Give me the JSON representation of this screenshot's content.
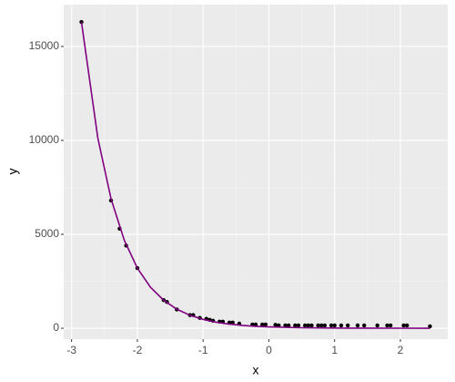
{
  "chart_data": {
    "type": "scatter",
    "x_label": "x",
    "y_label": "y",
    "xlim": [
      -3.12,
      2.72
    ],
    "xticks": [
      -3,
      -2,
      -1,
      0,
      1,
      2
    ],
    "ylim": [
      -580,
      17230
    ],
    "yticks": [
      0,
      5000,
      10000,
      15000
    ],
    "grid": true,
    "series": [
      {
        "type": "scatter",
        "color": "#000000",
        "x": [
          -2.85,
          -2.4,
          -2.27,
          -2.17,
          -2.0,
          -1.6,
          -1.55,
          -1.4,
          -1.2,
          -1.15,
          -1.05,
          -0.95,
          -0.9,
          -0.85,
          -0.75,
          -0.7,
          -0.6,
          -0.55,
          -0.45,
          -0.25,
          -0.2,
          -0.1,
          -0.05,
          0.1,
          0.15,
          0.25,
          0.3,
          0.4,
          0.45,
          0.55,
          0.6,
          0.65,
          0.75,
          0.8,
          0.85,
          0.95,
          1.0,
          1.1,
          1.2,
          1.35,
          1.45,
          1.65,
          1.8,
          1.85,
          2.05,
          2.1,
          2.45
        ],
        "values": [
          16300,
          6800,
          5300,
          4400,
          3200,
          1500,
          1400,
          1000,
          700,
          700,
          550,
          500,
          450,
          400,
          350,
          350,
          300,
          300,
          250,
          200,
          200,
          200,
          200,
          180,
          150,
          150,
          150,
          150,
          150,
          150,
          150,
          150,
          150,
          150,
          150,
          150,
          150,
          150,
          150,
          150,
          150,
          150,
          150,
          150,
          150,
          150,
          100
        ]
      },
      {
        "type": "line",
        "color": "#800080",
        "x": [
          -2.85,
          -2.6,
          -2.4,
          -2.2,
          -2.0,
          -1.8,
          -1.6,
          -1.4,
          -1.2,
          -1.0,
          -0.8,
          -0.6,
          -0.4,
          -0.2,
          0,
          0.5,
          1.0,
          1.5,
          2.0,
          2.45
        ],
        "values": [
          16300,
          10100,
          6890,
          4700,
          3200,
          2180,
          1490,
          1015,
          692,
          472,
          322,
          219,
          150,
          102,
          70,
          27,
          10,
          4,
          2,
          1
        ]
      }
    ]
  }
}
